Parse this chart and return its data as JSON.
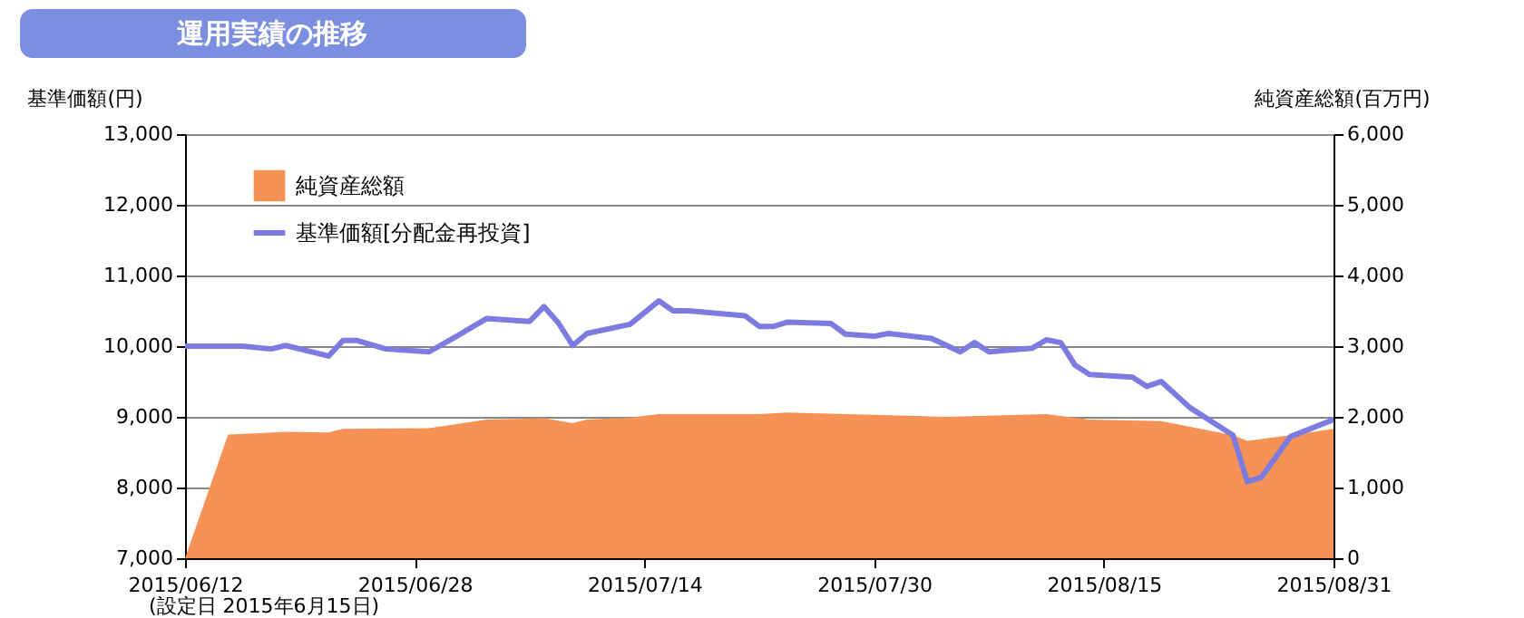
{
  "chart_data": {
    "type": "line",
    "title": "運用実績の推移",
    "ylabel": "基準価額(円)",
    "y2label": "純資産総額(百万円)",
    "annotations": [
      "(設定日 2015年6月15日)"
    ],
    "xlim": [
      "2015-06-12",
      "2015-08-31"
    ],
    "xticks": [
      {
        "value": "2015-06-12",
        "label": "2015/06/12"
      },
      {
        "value": "2015-06-28",
        "label": "2015/06/28"
      },
      {
        "value": "2015-07-14",
        "label": "2015/07/14"
      },
      {
        "value": "2015-07-30",
        "label": "2015/07/30"
      },
      {
        "value": "2015-08-15",
        "label": "2015/08/15"
      },
      {
        "value": "2015-08-31",
        "label": "2015/08/31"
      }
    ],
    "ylim": [
      7000,
      13000
    ],
    "yticks": [
      {
        "value": 7000,
        "label": "7,000"
      },
      {
        "value": 8000,
        "label": "8,000"
      },
      {
        "value": 9000,
        "label": "9,000"
      },
      {
        "value": 10000,
        "label": "10,000"
      },
      {
        "value": 11000,
        "label": "11,000"
      },
      {
        "value": 12000,
        "label": "12,000"
      },
      {
        "value": 13000,
        "label": "13,000"
      }
    ],
    "y2lim": [
      0,
      6000
    ],
    "y2ticks": [
      {
        "value": 0,
        "label": "0"
      },
      {
        "value": 1000,
        "label": "1,000"
      },
      {
        "value": 2000,
        "label": "2,000"
      },
      {
        "value": 3000,
        "label": "3,000"
      },
      {
        "value": 4000,
        "label": "4,000"
      },
      {
        "value": 5000,
        "label": "5,000"
      },
      {
        "value": 6000,
        "label": "6,000"
      }
    ],
    "grid": "y",
    "legend": "top left",
    "marker": "none",
    "line_style": "solid",
    "series": [
      {
        "name": "純資産総額",
        "type": "area",
        "axis": "y2",
        "color": "#f79256",
        "x": [
          "2015-06-12",
          "2015-06-15",
          "2015-06-19",
          "2015-06-22",
          "2015-06-23",
          "2015-06-29",
          "2015-07-03",
          "2015-07-07",
          "2015-07-09",
          "2015-07-10",
          "2015-07-13",
          "2015-07-15",
          "2015-07-22",
          "2015-07-24",
          "2015-08-04",
          "2015-08-11",
          "2015-08-14",
          "2015-08-19",
          "2015-08-24",
          "2015-08-25",
          "2015-08-28",
          "2015-08-31"
        ],
        "values": [
          0,
          1750,
          1790,
          1780,
          1830,
          1840,
          1960,
          1980,
          1910,
          1960,
          1990,
          2040,
          2040,
          2060,
          2000,
          2040,
          1960,
          1940,
          1740,
          1660,
          1740,
          1830
        ]
      },
      {
        "name": "基準価額[分配金再投資]",
        "color": "#7b7be0",
        "x": [
          "2015-06-12",
          "2015-06-16",
          "2015-06-18",
          "2015-06-19",
          "2015-06-22",
          "2015-06-23",
          "2015-06-24",
          "2015-06-26",
          "2015-06-29",
          "2015-07-01",
          "2015-07-03",
          "2015-07-06",
          "2015-07-07",
          "2015-07-08",
          "2015-07-09",
          "2015-07-10",
          "2015-07-13",
          "2015-07-15",
          "2015-07-16",
          "2015-07-17",
          "2015-07-21",
          "2015-07-22",
          "2015-07-23",
          "2015-07-24",
          "2015-07-27",
          "2015-07-28",
          "2015-07-30",
          "2015-07-31",
          "2015-08-03",
          "2015-08-05",
          "2015-08-06",
          "2015-08-07",
          "2015-08-10",
          "2015-08-11",
          "2015-08-12",
          "2015-08-13",
          "2015-08-14",
          "2015-08-17",
          "2015-08-18",
          "2015-08-19",
          "2015-08-21",
          "2015-08-24",
          "2015-08-25",
          "2015-08-26",
          "2015-08-28",
          "2015-08-31"
        ],
        "values": [
          10000,
          10000,
          9960,
          10010,
          9860,
          10080,
          10080,
          9960,
          9920,
          10150,
          10390,
          10350,
          10560,
          10330,
          10010,
          10180,
          10310,
          10640,
          10500,
          10500,
          10430,
          10280,
          10280,
          10340,
          10320,
          10170,
          10140,
          10180,
          10110,
          9920,
          10050,
          9920,
          9970,
          10090,
          10050,
          9730,
          9600,
          9560,
          9430,
          9500,
          9130,
          8740,
          8080,
          8150,
          8720,
          8960
        ]
      }
    ]
  }
}
